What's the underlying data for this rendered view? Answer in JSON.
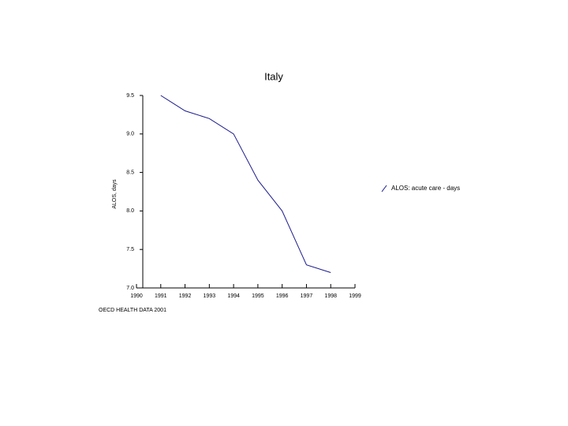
{
  "chart_data": {
    "type": "line",
    "title": "Italy",
    "y_label": "ALOS, days",
    "x": [
      1991,
      1992,
      1993,
      1994,
      1995,
      1996,
      1997,
      1998
    ],
    "series": [
      {
        "name": "ALOS: acute care - days",
        "color": "#1a1a8c",
        "values": [
          9.5,
          9.3,
          9.2,
          9.0,
          8.4,
          8.0,
          7.3,
          7.2
        ]
      }
    ],
    "xlim": [
      1990,
      1999
    ],
    "xticks": [
      1990,
      1991,
      1992,
      1993,
      1994,
      1995,
      1996,
      1997,
      1998,
      1999
    ],
    "ylim": [
      7,
      9.5
    ],
    "yticks": [
      {
        "value": 7,
        "label": "7.0"
      },
      7.5,
      {
        "value": 8,
        "label": "8.0"
      },
      8.5,
      {
        "value": 9,
        "label": "9.0"
      },
      9.5
    ],
    "source": "OECD HEALTH DATA 2001"
  }
}
